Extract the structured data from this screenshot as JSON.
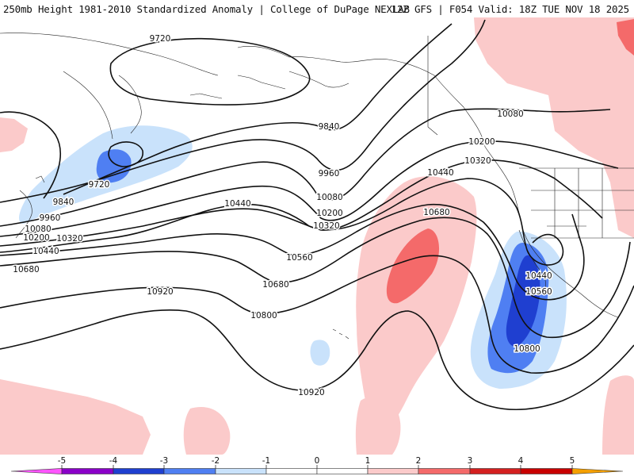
{
  "header": {
    "title": "250mb Height 1981-2010 Standardized Anomaly | College of DuPage NEXLAB",
    "run_info": "12Z GFS | F054 Valid: 18Z TUE NOV 18 2025"
  },
  "contours": {
    "units": "m",
    "labels": {
      "c9720a": "9720",
      "c9720b": "9720",
      "c9840a": "9840",
      "c9840b": "9840",
      "c9960a": "9960",
      "c9960b": "9960",
      "c10080a": "10080",
      "c10080b": "10080",
      "c10080c": "10080",
      "c10200a": "10200",
      "c10200b": "10200",
      "c10200c": "10200",
      "c10320a": "10320",
      "c10320b": "10320",
      "c10320c": "10320",
      "c10440a": "10440",
      "c10440b": "10440",
      "c10440c": "10440",
      "c10440d": "10440",
      "c10560a": "10560",
      "c10560b": "10560",
      "c10680a": "10680",
      "c10680b": "10680",
      "c10680c": "10680",
      "c10800a": "10800",
      "c10800b": "10800",
      "c10920a": "10920",
      "c10920b": "10920"
    }
  },
  "anomaly_scale": {
    "ticks": [
      "-5",
      "-4",
      "-3",
      "-2",
      "-1",
      "0",
      "1",
      "2",
      "3",
      "4",
      "5"
    ],
    "colors": {
      "n5": "#ff55ff",
      "n4": "#8a00c8",
      "n3": "#1f3fd0",
      "n2": "#4f7ff2",
      "n1": "#c9e2fb",
      "zero": "#ffffff",
      "p1": "#fbcaca",
      "p2": "#f46a6a",
      "p3": "#d42020",
      "p4": "#c80000",
      "p5": "#f5a000",
      "p6": "#ffe600"
    }
  }
}
